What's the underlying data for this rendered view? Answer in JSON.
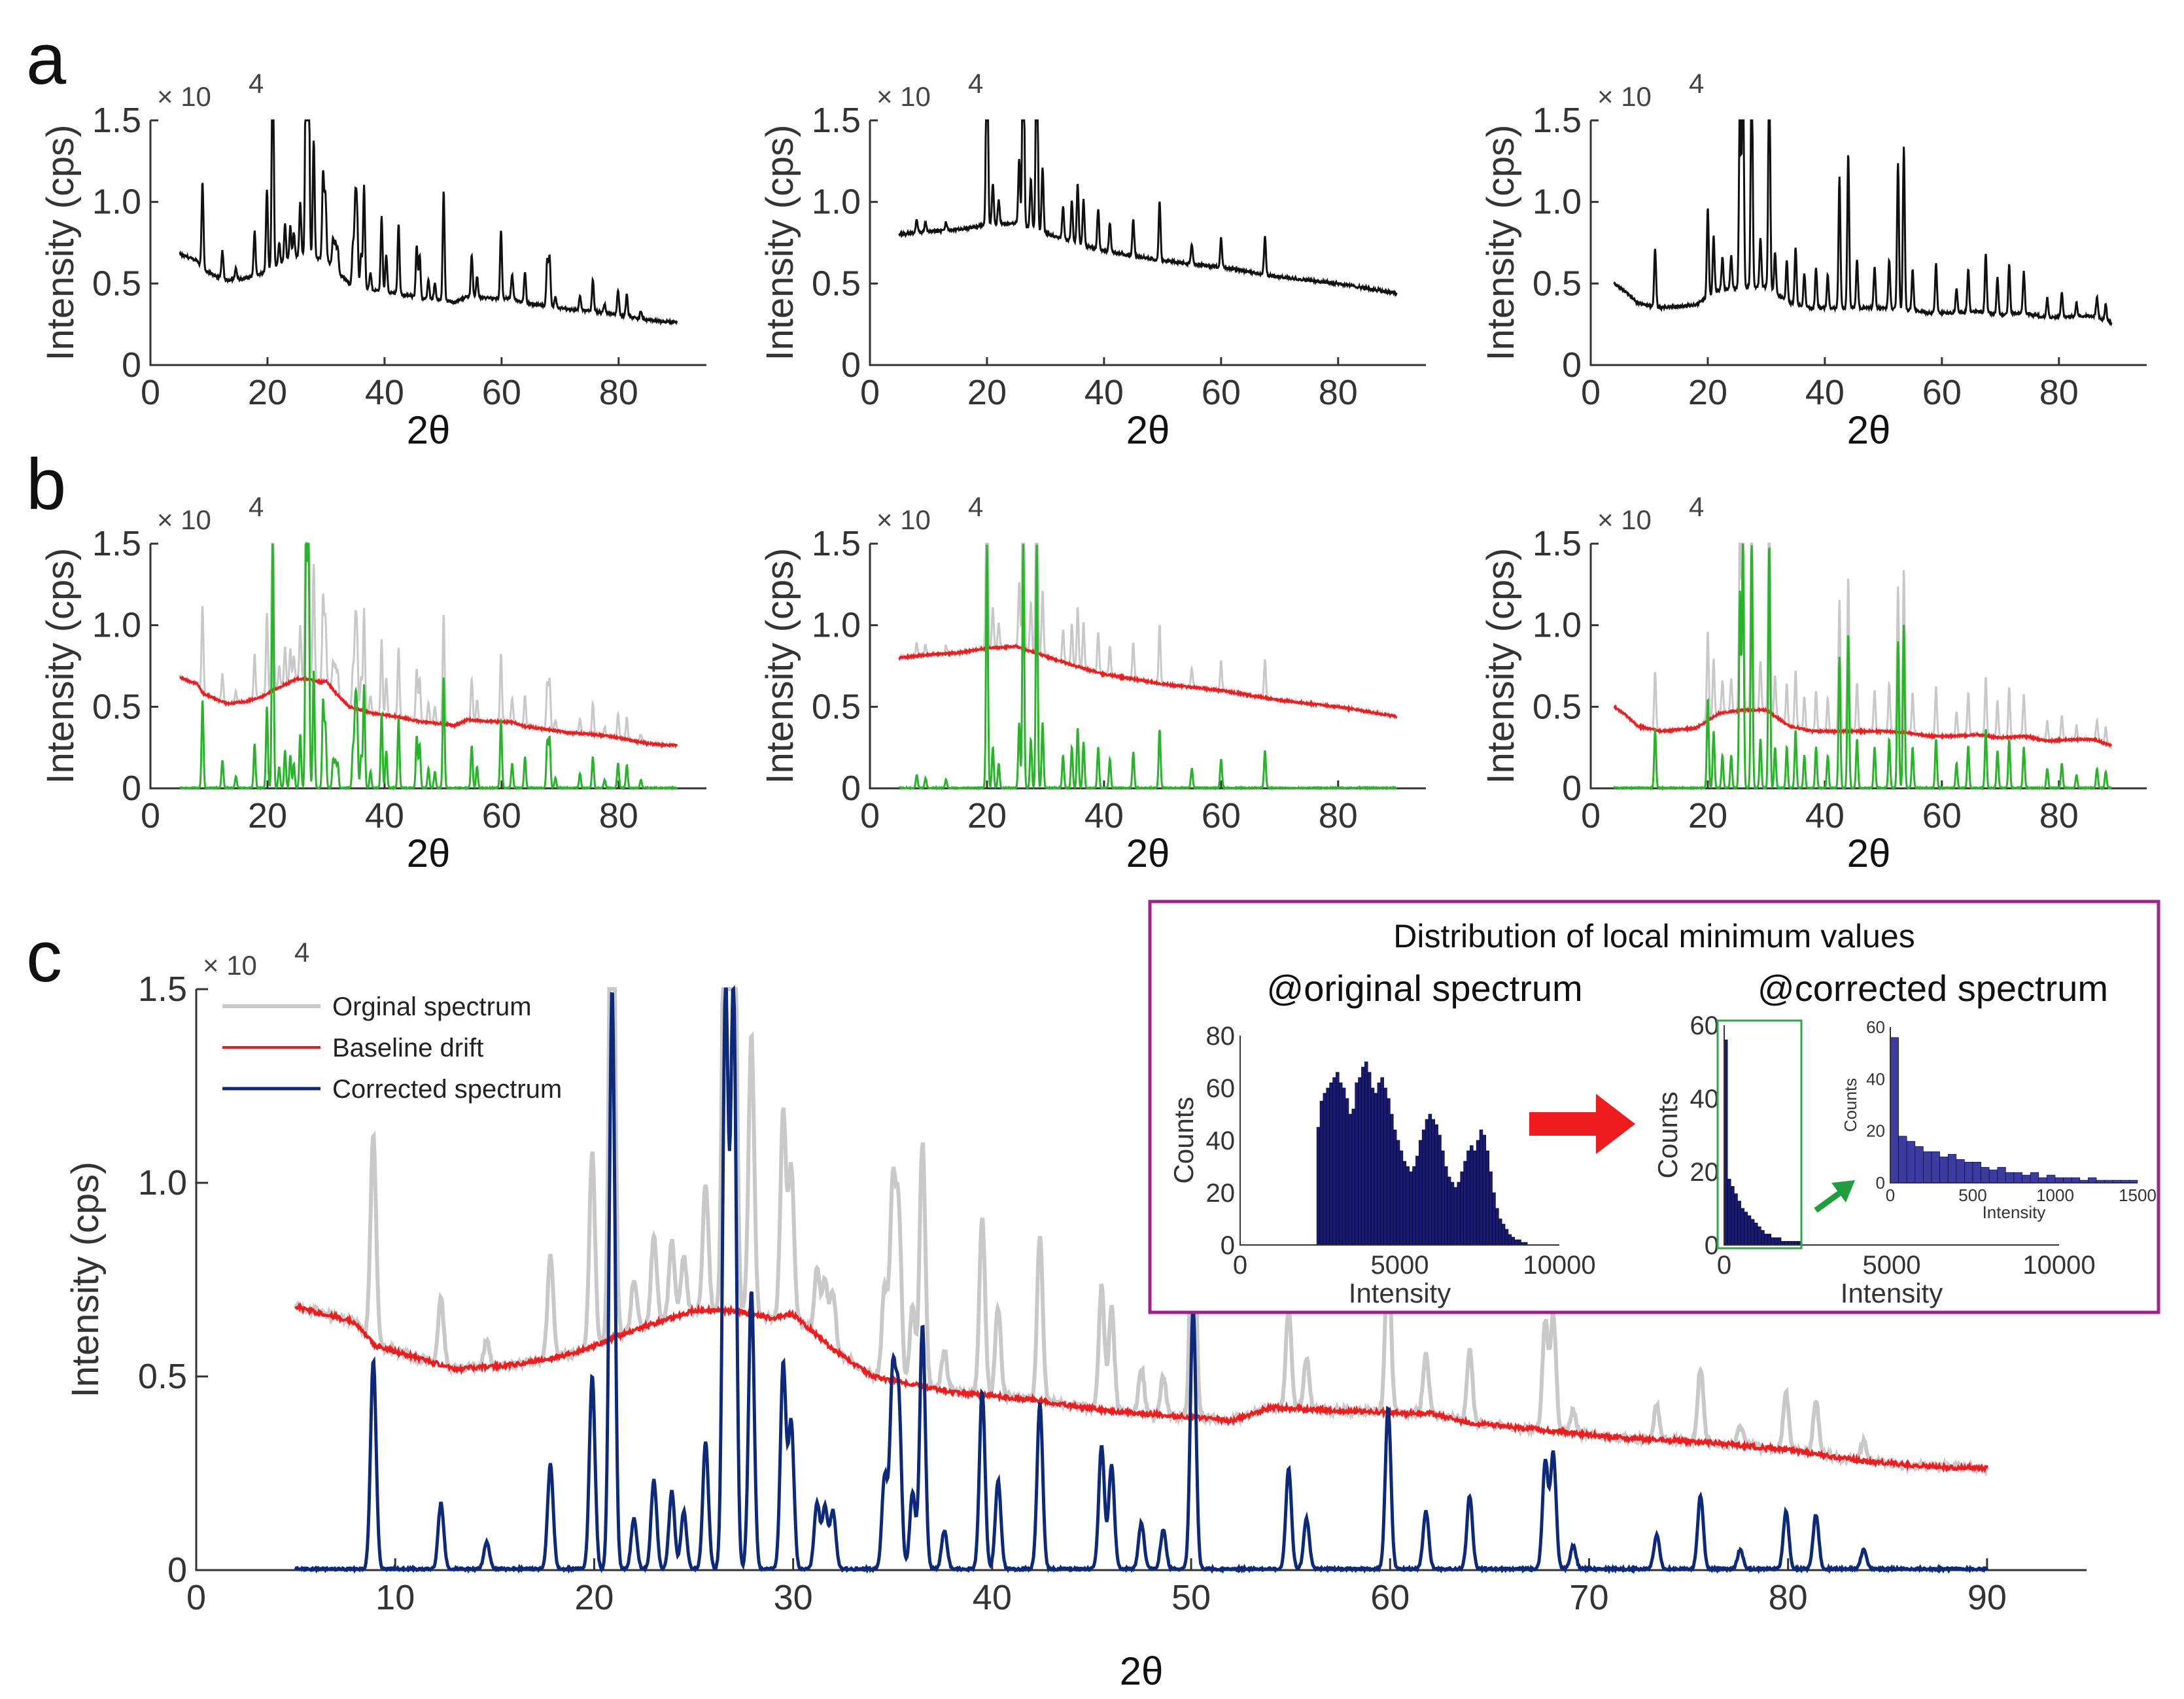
{
  "panel_labels": [
    "a",
    "b",
    "c"
  ],
  "axis_common": {
    "ylabel": "Intensity (cps)",
    "xlabel": "2θ",
    "exponent_label": "× 10",
    "exponent_power": "4",
    "yticks": [
      "0",
      "0.5",
      "1.0",
      "1.5"
    ],
    "xticks_small": [
      "0",
      "20",
      "40",
      "60",
      "80"
    ],
    "xticks_large": [
      "0",
      "10",
      "20",
      "30",
      "40",
      "50",
      "60",
      "70",
      "80",
      "90"
    ]
  },
  "legend": {
    "original": "Orginal spectrum",
    "baseline": "Baseline drift",
    "corrected": "Corrected spectrum"
  },
  "inset": {
    "title": "Distribution of local minimum values",
    "left_subtitle": "@original spectrum",
    "right_subtitle": "@corrected spectrum",
    "ylabel": "Counts",
    "xlabel": "Intensity",
    "left_xticks": [
      "0",
      "5000",
      "10000"
    ],
    "left_yticks": [
      "0",
      "20",
      "40",
      "60",
      "80"
    ],
    "right_xticks": [
      "0",
      "5000",
      "10000"
    ],
    "right_yticks": [
      "0",
      "20",
      "40",
      "60"
    ],
    "mini_xticks": [
      "0",
      "500",
      "1000",
      "1500"
    ],
    "mini_yticks": [
      "0",
      "20",
      "40",
      "60"
    ]
  },
  "colors": {
    "original": "#c8c8c8",
    "baseline": "#ee1c1c",
    "corrected": "#0d2a7a",
    "corrected_b": "#28b428",
    "raw_a": "#111111",
    "hist": "#1a1a6e",
    "hist_mini": "#3c3ca0",
    "inset_border": "#a0208c",
    "zoom_box": "#2aa84a",
    "arrow_red": "#ee1c1c",
    "arrow_green": "#1e9e3c"
  },
  "chart_data": [
    {
      "id": "spectrum-1",
      "type": "line",
      "xlabel": "2θ",
      "ylabel": "Intensity (cps)",
      "xlim": [
        0,
        95
      ],
      "ylim": [
        0,
        15000
      ],
      "x_range": [
        5,
        90
      ],
      "baseline": [
        [
          5,
          6800
        ],
        [
          8,
          6400
        ],
        [
          9,
          5800
        ],
        [
          11,
          5500
        ],
        [
          13,
          5200
        ],
        [
          16,
          5300
        ],
        [
          19,
          5600
        ],
        [
          22,
          6200
        ],
        [
          25,
          6700
        ],
        [
          27,
          6700
        ],
        [
          29,
          6500
        ],
        [
          30,
          6600
        ],
        [
          32,
          5700
        ],
        [
          34,
          5000
        ],
        [
          38,
          4600
        ],
        [
          42,
          4400
        ],
        [
          46,
          4100
        ],
        [
          50,
          3950
        ],
        [
          52,
          3850
        ],
        [
          54,
          4200
        ],
        [
          58,
          4100
        ],
        [
          62,
          4050
        ],
        [
          64,
          3800
        ],
        [
          68,
          3600
        ],
        [
          72,
          3400
        ],
        [
          76,
          3300
        ],
        [
          80,
          3100
        ],
        [
          84,
          2800
        ],
        [
          88,
          2650
        ],
        [
          90,
          2650
        ]
      ],
      "peaks": [
        [
          8.9,
          5400
        ],
        [
          12.3,
          1700
        ],
        [
          14.6,
          700
        ],
        [
          17.8,
          2700
        ],
        [
          19.9,
          5000
        ],
        [
          20.9,
          15000
        ],
        [
          22.0,
          1300
        ],
        [
          23.0,
          2300
        ],
        [
          23.9,
          2000
        ],
        [
          24.5,
          1500
        ],
        [
          25.6,
          3300
        ],
        [
          26.6,
          15000
        ],
        [
          27.0,
          15000
        ],
        [
          27.9,
          7200
        ],
        [
          29.5,
          5300
        ],
        [
          29.9,
          3800
        ],
        [
          31.2,
          1700
        ],
        [
          31.6,
          1600
        ],
        [
          32.0,
          1500
        ],
        [
          34.6,
          2400
        ],
        [
          35.0,
          4900
        ],
        [
          35.3,
          4300
        ],
        [
          36.0,
          2000
        ],
        [
          36.5,
          6300
        ],
        [
          37.6,
          1000
        ],
        [
          39.5,
          4600
        ],
        [
          40.3,
          2300
        ],
        [
          42.4,
          4300
        ],
        [
          45.5,
          3200
        ],
        [
          46.0,
          2700
        ],
        [
          47.5,
          1200
        ],
        [
          48.6,
          1000
        ],
        [
          50.1,
          6800
        ],
        [
          54.9,
          2600
        ],
        [
          55.8,
          1300
        ],
        [
          59.9,
          4200
        ],
        [
          61.8,
          1500
        ],
        [
          64.0,
          1900
        ],
        [
          67.8,
          2800
        ],
        [
          68.2,
          3000
        ],
        [
          69.2,
          600
        ],
        [
          73.4,
          900
        ],
        [
          75.6,
          1900
        ],
        [
          77.6,
          500
        ],
        [
          79.9,
          1500
        ],
        [
          81.4,
          1400
        ],
        [
          83.8,
          500
        ]
      ]
    },
    {
      "id": "spectrum-2",
      "type": "line",
      "xlabel": "2θ",
      "ylabel": "Intensity (cps)",
      "xlim": [
        0,
        95
      ],
      "ylim": [
        0,
        15000
      ],
      "x_range": [
        5,
        90
      ],
      "baseline": [
        [
          5,
          8000
        ],
        [
          10,
          8200
        ],
        [
          15,
          8300
        ],
        [
          20,
          8600
        ],
        [
          25,
          8700
        ],
        [
          30,
          8100
        ],
        [
          35,
          7500
        ],
        [
          40,
          7000
        ],
        [
          45,
          6700
        ],
        [
          50,
          6400
        ],
        [
          55,
          6200
        ],
        [
          60,
          6000
        ],
        [
          65,
          5700
        ],
        [
          70,
          5400
        ],
        [
          75,
          5200
        ],
        [
          80,
          5000
        ],
        [
          85,
          4700
        ],
        [
          90,
          4400
        ]
      ],
      "peaks": [
        [
          8.0,
          800
        ],
        [
          9.5,
          600
        ],
        [
          13.0,
          500
        ],
        [
          20.0,
          15000
        ],
        [
          21.0,
          2500
        ],
        [
          22.0,
          1500
        ],
        [
          25.5,
          4000
        ],
        [
          26.2,
          15000
        ],
        [
          27.5,
          3000
        ],
        [
          28.5,
          15000
        ],
        [
          29.5,
          4000
        ],
        [
          33.0,
          2000
        ],
        [
          34.5,
          2500
        ],
        [
          35.5,
          3700
        ],
        [
          36.5,
          2800
        ],
        [
          39.0,
          2500
        ],
        [
          41.0,
          1800
        ],
        [
          45.0,
          2200
        ],
        [
          49.5,
          3600
        ],
        [
          55.0,
          1200
        ],
        [
          60.0,
          1800
        ],
        [
          67.5,
          2300
        ]
      ]
    },
    {
      "id": "spectrum-3",
      "type": "line",
      "xlabel": "2θ",
      "ylabel": "Intensity (cps)",
      "xlim": [
        0,
        95
      ],
      "ylim": [
        0,
        15000
      ],
      "x_range": [
        4,
        89
      ],
      "baseline": [
        [
          4,
          5000
        ],
        [
          6,
          4500
        ],
        [
          8,
          3800
        ],
        [
          12,
          3500
        ],
        [
          18,
          3700
        ],
        [
          22,
          4600
        ],
        [
          26,
          4800
        ],
        [
          30,
          4800
        ],
        [
          34,
          3800
        ],
        [
          38,
          3500
        ],
        [
          42,
          3500
        ],
        [
          46,
          3500
        ],
        [
          50,
          3500
        ],
        [
          54,
          3400
        ],
        [
          58,
          3200
        ],
        [
          62,
          3200
        ],
        [
          66,
          3300
        ],
        [
          70,
          3100
        ],
        [
          74,
          3200
        ],
        [
          78,
          2900
        ],
        [
          82,
          3000
        ],
        [
          86,
          3000
        ],
        [
          89,
          2600
        ]
      ],
      "peaks": [
        [
          11.0,
          3600
        ],
        [
          20.0,
          5500
        ],
        [
          21.0,
          3500
        ],
        [
          22.5,
          2000
        ],
        [
          24.0,
          2000
        ],
        [
          25.5,
          12000
        ],
        [
          26.0,
          15000
        ],
        [
          27.5,
          15000
        ],
        [
          29.0,
          3000
        ],
        [
          30.5,
          15000
        ],
        [
          31.5,
          2500
        ],
        [
          33.5,
          2500
        ],
        [
          35.0,
          3500
        ],
        [
          36.5,
          2000
        ],
        [
          38.5,
          2500
        ],
        [
          40.5,
          2000
        ],
        [
          42.5,
          8000
        ],
        [
          44.0,
          9500
        ],
        [
          45.5,
          3000
        ],
        [
          48.5,
          2500
        ],
        [
          51.0,
          3000
        ],
        [
          52.5,
          9000
        ],
        [
          53.5,
          10000
        ],
        [
          55.0,
          2500
        ],
        [
          59.0,
          3000
        ],
        [
          62.5,
          1500
        ],
        [
          64.5,
          2600
        ],
        [
          67.5,
          3600
        ],
        [
          69.5,
          2300
        ],
        [
          71.5,
          3000
        ],
        [
          74.0,
          2500
        ],
        [
          78.0,
          1200
        ],
        [
          80.5,
          1500
        ],
        [
          83.0,
          800
        ],
        [
          86.5,
          1200
        ],
        [
          88.0,
          1000
        ]
      ]
    },
    {
      "id": "local-min-hist-original",
      "type": "bar",
      "xlabel": "Intensity",
      "ylabel": "Counts",
      "xlim": [
        0,
        10000
      ],
      "ylim": [
        0,
        80
      ],
      "bin_width": 100,
      "bins_start": 2400,
      "counts": [
        45,
        55,
        58,
        60,
        62,
        64,
        66,
        62,
        60,
        56,
        50,
        52,
        62,
        64,
        68,
        70,
        66,
        60,
        58,
        62,
        64,
        60,
        56,
        50,
        44,
        40,
        36,
        32,
        30,
        28,
        30,
        34,
        40,
        44,
        48,
        50,
        48,
        46,
        42,
        36,
        30,
        26,
        24,
        22,
        24,
        28,
        32,
        36,
        38,
        36,
        40,
        44,
        42,
        36,
        28,
        20,
        14,
        10,
        8,
        6,
        4,
        3,
        2,
        2,
        1,
        1
      ]
    },
    {
      "id": "local-min-hist-corrected",
      "type": "bar",
      "xlabel": "Intensity",
      "ylabel": "Counts",
      "xlim": [
        0,
        10000
      ],
      "ylim": [
        0,
        60
      ],
      "bin_width": 100,
      "bins_start": 0,
      "counts": [
        56,
        18,
        16,
        14,
        12,
        10,
        9,
        8,
        7,
        6,
        5,
        4,
        3,
        3,
        2,
        2,
        2,
        1,
        1,
        1,
        1,
        1,
        1
      ]
    },
    {
      "id": "local-min-hist-corrected-zoom",
      "type": "bar",
      "xlabel": "Intensity",
      "ylabel": "Counts",
      "xlim": [
        0,
        1500
      ],
      "ylim": [
        0,
        60
      ],
      "bin_width": 50,
      "counts": [
        56,
        18,
        16,
        14,
        12,
        12,
        10,
        11,
        9,
        8,
        8,
        6,
        5,
        6,
        4,
        4,
        3,
        4,
        2,
        3,
        2,
        2,
        2,
        1,
        2,
        1,
        1,
        1,
        1,
        1
      ]
    }
  ]
}
